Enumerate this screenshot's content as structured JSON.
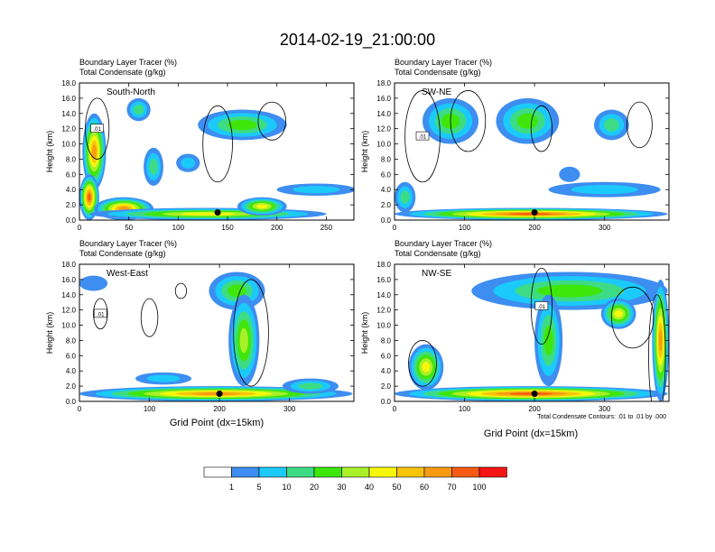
{
  "figure": {
    "title": "2014-02-19_21:00:00",
    "xlabel": "Grid Point (dx=15km)",
    "contour_note": "Total Condensate Contours: .01 to .01 by .000",
    "inline_contour_label": ".01"
  },
  "colorbar": {
    "labels": [
      "1",
      "5",
      "10",
      "20",
      "30",
      "40",
      "50",
      "60",
      "70",
      "100"
    ],
    "colors": [
      "#ffffff",
      "#3d8ef0",
      "#1bcafa",
      "#3ddc84",
      "#3fe60a",
      "#a8f028",
      "#f7f70a",
      "#f7c40a",
      "#f79b10",
      "#f75a10",
      "#f51414"
    ]
  },
  "chart_data": [
    {
      "type": "heatmap",
      "title": "South-North",
      "subtitle_line1": "Boundary Layer Tracer   (%)",
      "subtitle_line2": "Total Condensate   (g/kg)",
      "ylabel": "Height (km)",
      "xlim": [
        0,
        278
      ],
      "ylim": [
        0,
        18
      ],
      "xticks": [
        0,
        50,
        100,
        150,
        200,
        250
      ],
      "xtick_labels": [
        "0",
        "50",
        "100",
        "150",
        "200",
        "250"
      ],
      "yticks": [
        0,
        2,
        4,
        6,
        8,
        10,
        12,
        14,
        16,
        18
      ],
      "ytick_labels": [
        "0.0",
        "2.0",
        "4.0",
        "6.0",
        "8.0",
        "10.0",
        "12.0",
        "14.0",
        "16.0",
        "18.0"
      ],
      "marker": {
        "x": 140,
        "y": 1.0
      },
      "tracer_blobs": [
        {
          "x": 15,
          "y": 9,
          "rx": 12,
          "ry": 5,
          "value": 60
        },
        {
          "x": 10,
          "y": 3,
          "rx": 10,
          "ry": 3,
          "value": 80
        },
        {
          "x": 45,
          "y": 1.5,
          "rx": 30,
          "ry": 1.5,
          "value": 60
        },
        {
          "x": 130,
          "y": 0.8,
          "rx": 120,
          "ry": 0.8,
          "value": 45
        },
        {
          "x": 185,
          "y": 1.8,
          "rx": 25,
          "ry": 1.2,
          "value": 45
        },
        {
          "x": 165,
          "y": 12.5,
          "rx": 45,
          "ry": 2,
          "value": 20
        },
        {
          "x": 60,
          "y": 14.5,
          "rx": 12,
          "ry": 1.5,
          "value": 12
        },
        {
          "x": 75,
          "y": 7,
          "rx": 10,
          "ry": 2.5,
          "value": 15
        },
        {
          "x": 110,
          "y": 7.5,
          "rx": 12,
          "ry": 1.2,
          "value": 8
        },
        {
          "x": 240,
          "y": 4.0,
          "rx": 40,
          "ry": 0.8,
          "value": 5
        }
      ],
      "contours": [
        {
          "x": 18,
          "y": 12,
          "rx": 12,
          "ry": 4
        },
        {
          "x": 140,
          "y": 10,
          "rx": 15,
          "ry": 5
        },
        {
          "x": 195,
          "y": 13,
          "rx": 14,
          "ry": 2.5
        }
      ]
    },
    {
      "type": "heatmap",
      "title": "SW-NE",
      "subtitle_line1": "Boundary Layer Tracer   (%)",
      "subtitle_line2": "Total Condensate   (g/kg)",
      "ylabel": "Height (km)",
      "xlim": [
        0,
        392
      ],
      "ylim": [
        0,
        18
      ],
      "xticks": [
        0,
        100,
        200,
        300
      ],
      "xtick_labels": [
        "0",
        "100",
        "200",
        "300"
      ],
      "yticks": [
        0,
        2,
        4,
        6,
        8,
        10,
        12,
        14,
        16,
        18
      ],
      "ytick_labels": [
        "0.0",
        "2.0",
        "4.0",
        "6.0",
        "8.0",
        "10.0",
        "12.0",
        "14.0",
        "16.0",
        "18.0"
      ],
      "marker": {
        "x": 200,
        "y": 1.0
      },
      "tracer_blobs": [
        {
          "x": 195,
          "y": 0.8,
          "rx": 195,
          "ry": 0.8,
          "value": 70
        },
        {
          "x": 80,
          "y": 13,
          "rx": 40,
          "ry": 3,
          "value": 20
        },
        {
          "x": 190,
          "y": 13,
          "rx": 45,
          "ry": 3,
          "value": 25
        },
        {
          "x": 310,
          "y": 12.5,
          "rx": 25,
          "ry": 2,
          "value": 15
        },
        {
          "x": 300,
          "y": 4,
          "rx": 80,
          "ry": 1,
          "value": 5
        },
        {
          "x": 15,
          "y": 3,
          "rx": 15,
          "ry": 2,
          "value": 12
        },
        {
          "x": 250,
          "y": 6,
          "rx": 15,
          "ry": 1,
          "value": 3
        }
      ],
      "contours": [
        {
          "x": 40,
          "y": 11,
          "rx": 25,
          "ry": 6
        },
        {
          "x": 105,
          "y": 13,
          "rx": 25,
          "ry": 4
        },
        {
          "x": 210,
          "y": 12,
          "rx": 15,
          "ry": 3
        },
        {
          "x": 350,
          "y": 12.5,
          "rx": 18,
          "ry": 3
        }
      ]
    },
    {
      "type": "heatmap",
      "title": "West-East",
      "subtitle_line1": "Boundary Layer Tracer   (%)",
      "subtitle_line2": "Total Condensate   (g/kg)",
      "ylabel": "Height (km)",
      "xlim": [
        0,
        392
      ],
      "ylim": [
        0,
        18
      ],
      "xticks": [
        0,
        100,
        200,
        300
      ],
      "xtick_labels": [
        "0",
        "100",
        "200",
        "300"
      ],
      "yticks": [
        0,
        2,
        4,
        6,
        8,
        10,
        12,
        14,
        16,
        18
      ],
      "ytick_labels": [
        "0.0",
        "2.0",
        "4.0",
        "6.0",
        "8.0",
        "10.0",
        "12.0",
        "14.0",
        "16.0",
        "18.0"
      ],
      "marker": {
        "x": 200,
        "y": 1.0
      },
      "tracer_blobs": [
        {
          "x": 195,
          "y": 1.0,
          "rx": 195,
          "ry": 1.0,
          "value": 60
        },
        {
          "x": 225,
          "y": 14.5,
          "rx": 40,
          "ry": 2.5,
          "value": 25
        },
        {
          "x": 235,
          "y": 8,
          "rx": 22,
          "ry": 6,
          "value": 30
        },
        {
          "x": 20,
          "y": 15.5,
          "rx": 20,
          "ry": 1,
          "value": 3
        },
        {
          "x": 120,
          "y": 3,
          "rx": 40,
          "ry": 0.8,
          "value": 5
        },
        {
          "x": 330,
          "y": 2,
          "rx": 40,
          "ry": 1,
          "value": 15
        }
      ],
      "contours": [
        {
          "x": 30,
          "y": 11.5,
          "rx": 10,
          "ry": 2
        },
        {
          "x": 100,
          "y": 11,
          "rx": 12,
          "ry": 2.5
        },
        {
          "x": 245,
          "y": 9,
          "rx": 25,
          "ry": 7
        },
        {
          "x": 145,
          "y": 14.5,
          "rx": 8,
          "ry": 1
        }
      ]
    },
    {
      "type": "heatmap",
      "title": "NW-SE",
      "subtitle_line1": "Boundary Layer Tracer   (%)",
      "subtitle_line2": "Total Condensate   (g/kg)",
      "ylabel": "Height (km)",
      "xlim": [
        0,
        392
      ],
      "ylim": [
        0,
        18
      ],
      "xticks": [
        0,
        100,
        200,
        300
      ],
      "xtick_labels": [
        "0",
        "100",
        "200",
        "300"
      ],
      "yticks": [
        0,
        2,
        4,
        6,
        8,
        10,
        12,
        14,
        16,
        18
      ],
      "ytick_labels": [
        "0.0",
        "2.0",
        "4.0",
        "6.0",
        "8.0",
        "10.0",
        "12.0",
        "14.0",
        "16.0",
        "18.0"
      ],
      "marker": {
        "x": 200,
        "y": 1.0
      },
      "tracer_blobs": [
        {
          "x": 195,
          "y": 1.0,
          "rx": 195,
          "ry": 1.0,
          "value": 70
        },
        {
          "x": 250,
          "y": 14.5,
          "rx": 140,
          "ry": 2.5,
          "value": 20
        },
        {
          "x": 220,
          "y": 8,
          "rx": 20,
          "ry": 6,
          "value": 25
        },
        {
          "x": 45,
          "y": 4.5,
          "rx": 25,
          "ry": 3,
          "value": 40
        },
        {
          "x": 380,
          "y": 8,
          "rx": 12,
          "ry": 8,
          "value": 60
        },
        {
          "x": 320,
          "y": 11.5,
          "rx": 25,
          "ry": 2,
          "value": 40
        }
      ],
      "contours": [
        {
          "x": 210,
          "y": 12.5,
          "rx": 15,
          "ry": 5
        },
        {
          "x": 340,
          "y": 11,
          "rx": 30,
          "ry": 4
        },
        {
          "x": 375,
          "y": 6,
          "rx": 12,
          "ry": 8
        },
        {
          "x": 40,
          "y": 5,
          "rx": 20,
          "ry": 3
        }
      ]
    }
  ]
}
